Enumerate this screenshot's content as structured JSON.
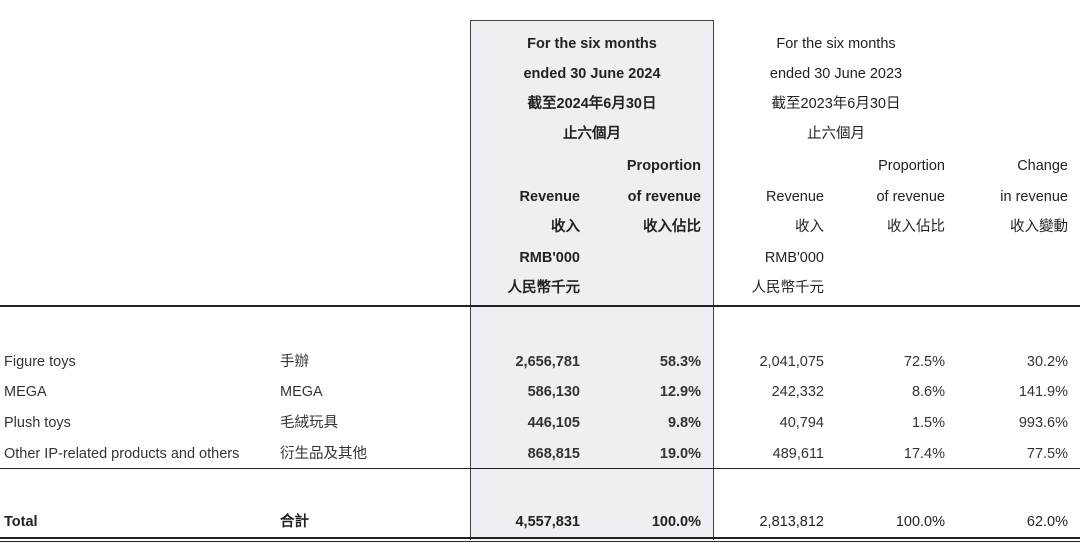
{
  "header": {
    "period_2024": [
      "For the six months",
      "ended 30 June 2024",
      "截至2024年6月30日",
      "止六個月"
    ],
    "period_2023": [
      "For the six months",
      "ended 30 June 2023",
      "截至2023年6月30日",
      "止六個月"
    ],
    "revenue": [
      "Revenue",
      "收入",
      "RMB'000",
      "人民幣千元"
    ],
    "proportion": [
      "Proportion",
      "of revenue",
      "收入佔比"
    ],
    "change": [
      "Change",
      "in revenue",
      "收入變動"
    ]
  },
  "rows": [
    {
      "label_en": "Figure toys",
      "label_zh": "手辦",
      "rev_2024": "2,656,781",
      "prop_2024": "58.3%",
      "rev_2023": "2,041,075",
      "prop_2023": "72.5%",
      "change": "30.2%"
    },
    {
      "label_en": "MEGA",
      "label_zh": "MEGA",
      "rev_2024": "586,130",
      "prop_2024": "12.9%",
      "rev_2023": "242,332",
      "prop_2023": "8.6%",
      "change": "141.9%"
    },
    {
      "label_en": "Plush toys",
      "label_zh": "毛絨玩具",
      "rev_2024": "446,105",
      "prop_2024": "9.8%",
      "rev_2023": "40,794",
      "prop_2023": "1.5%",
      "change": "993.6%"
    },
    {
      "label_en": "Other IP-related products and others",
      "label_zh": "衍生品及其他",
      "rev_2024": "868,815",
      "prop_2024": "19.0%",
      "rev_2023": "489,611",
      "prop_2023": "17.4%",
      "change": "77.5%"
    }
  ],
  "total": {
    "label_en": "Total",
    "label_zh": "合計",
    "rev_2024": "4,557,831",
    "prop_2024": "100.0%",
    "rev_2023": "2,813,812",
    "prop_2023": "100.0%",
    "change": "62.0%"
  },
  "colors": {
    "highlight_bg": "#eeeff2",
    "rule": "#222222",
    "text": "#222222"
  }
}
